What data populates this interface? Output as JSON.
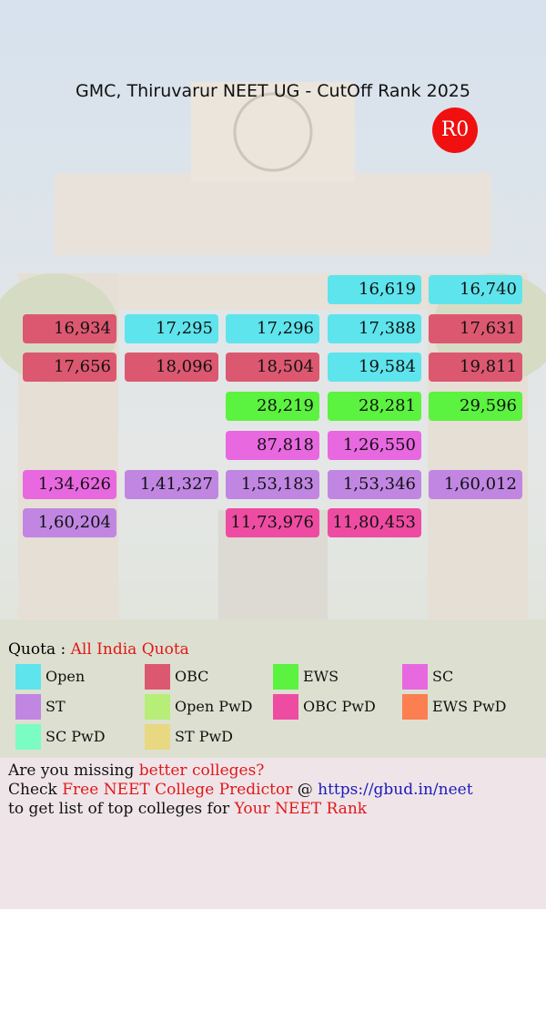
{
  "header": {
    "title": "GMC, Thiruvarur NEET UG - CutOff Rank 2025",
    "badge": "R0"
  },
  "grid": {
    "rows": [
      [
        null,
        null,
        null,
        {
          "rank": "16,619",
          "category": "Open"
        },
        {
          "rank": "16,740",
          "category": "Open"
        }
      ],
      [
        {
          "rank": "16,934",
          "category": "OBC"
        },
        {
          "rank": "17,295",
          "category": "Open"
        },
        {
          "rank": "17,296",
          "category": "Open"
        },
        {
          "rank": "17,388",
          "category": "Open"
        },
        {
          "rank": "17,631",
          "category": "OBC"
        }
      ],
      [
        {
          "rank": "17,656",
          "category": "OBC"
        },
        {
          "rank": "18,096",
          "category": "OBC"
        },
        {
          "rank": "18,504",
          "category": "OBC"
        },
        {
          "rank": "19,584",
          "category": "Open"
        },
        {
          "rank": "19,811",
          "category": "OBC"
        }
      ],
      [
        null,
        null,
        {
          "rank": "28,219",
          "category": "EWS"
        },
        {
          "rank": "28,281",
          "category": "EWS"
        },
        {
          "rank": "29,596",
          "category": "EWS"
        }
      ],
      [
        null,
        null,
        {
          "rank": "87,818",
          "category": "SC"
        },
        {
          "rank": "1,26,550",
          "category": "SC"
        },
        null
      ],
      [
        {
          "rank": "1,34,626",
          "category": "SC"
        },
        {
          "rank": "1,41,327",
          "category": "ST"
        },
        {
          "rank": "1,53,183",
          "category": "ST"
        },
        {
          "rank": "1,53,346",
          "category": "ST"
        },
        {
          "rank": "1,60,012",
          "category": "ST"
        }
      ],
      [
        {
          "rank": "1,60,204",
          "category": "ST"
        },
        null,
        {
          "rank": "11,73,976",
          "category": "OBC PwD"
        },
        {
          "rank": "11,80,453",
          "category": "OBC PwD"
        },
        null
      ]
    ]
  },
  "quota": {
    "label": "Quota :",
    "value": "All India Quota"
  },
  "legend": [
    {
      "name": "Open",
      "color": "#5ee4ec"
    },
    {
      "name": "OBC",
      "color": "#dc5870"
    },
    {
      "name": "EWS",
      "color": "#5cf240"
    },
    {
      "name": "SC",
      "color": "#e868e0"
    },
    {
      "name": "ST",
      "color": "#c086e2"
    },
    {
      "name": "Open PwD",
      "color": "#b6ee78"
    },
    {
      "name": "OBC PwD",
      "color": "#ee4ca2"
    },
    {
      "name": "EWS PwD",
      "color": "#fb7f50"
    },
    {
      "name": "SC PwD",
      "color": "#7afcc2"
    },
    {
      "name": "ST PwD",
      "color": "#e8d882"
    }
  ],
  "footer": {
    "lines": [
      [
        {
          "text": "Are you missing",
          "style": "plain"
        },
        {
          "text": "better colleges?",
          "style": "red"
        }
      ],
      [
        {
          "text": "Check",
          "style": "plain"
        },
        {
          "text": "Free NEET College Predictor",
          "style": "red"
        },
        {
          "text": "@",
          "style": "plain"
        },
        {
          "text": "https://gbud.in/neet",
          "style": "link"
        }
      ],
      [
        {
          "text": "to get list of top colleges for",
          "style": "plain"
        },
        {
          "text": "Your NEET Rank",
          "style": "red"
        }
      ]
    ]
  }
}
